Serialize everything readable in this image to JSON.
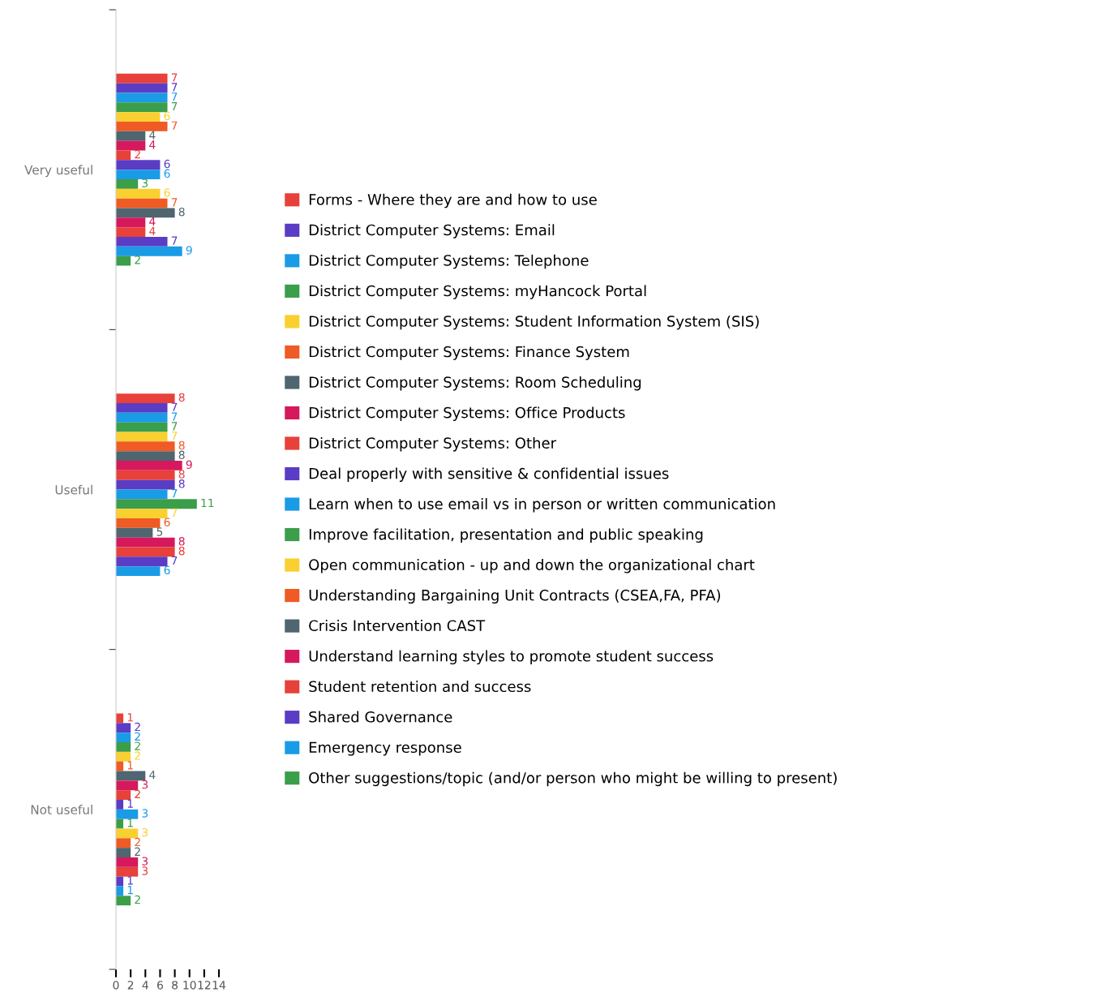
{
  "chart_data": {
    "type": "bar",
    "orientation": "horizontal",
    "categories": [
      "Very useful",
      "Useful",
      "Not useful"
    ],
    "xlim": [
      0,
      14
    ],
    "xticks": [
      0,
      2,
      4,
      6,
      8,
      10,
      12,
      14
    ],
    "data_labels": true,
    "legend": "right",
    "grid": false,
    "series": [
      {
        "name": "Forms - Where they are and how to use",
        "color": "#e8403a",
        "values": [
          7,
          8,
          1
        ]
      },
      {
        "name": "District Computer Systems: Email",
        "color": "#5b3cc4",
        "values": [
          7,
          7,
          2
        ]
      },
      {
        "name": "District Computer Systems: Telephone",
        "color": "#1a9be6",
        "values": [
          7,
          7,
          2
        ]
      },
      {
        "name": "District Computer Systems: myHancock Portal",
        "color": "#3a9e4a",
        "values": [
          7,
          7,
          2
        ]
      },
      {
        "name": "District Computer Systems: Student Information System (SIS)",
        "color": "#f9d030",
        "values": [
          6,
          7,
          2
        ]
      },
      {
        "name": "District Computer Systems: Finance System",
        "color": "#f05a24",
        "values": [
          7,
          8,
          1
        ]
      },
      {
        "name": "District Computer Systems: Room Scheduling",
        "color": "#4f6570",
        "values": [
          4,
          8,
          4
        ]
      },
      {
        "name": "District Computer Systems: Office Products",
        "color": "#d6185c",
        "values": [
          4,
          9,
          3
        ]
      },
      {
        "name": "District Computer Systems: Other",
        "color": "#e8403a",
        "values": [
          2,
          8,
          2
        ]
      },
      {
        "name": "Deal properly with sensitive & confidential issues",
        "color": "#5b3cc4",
        "values": [
          6,
          8,
          1
        ]
      },
      {
        "name": "Learn when to use email vs in person or written communication",
        "color": "#1a9be6",
        "values": [
          6,
          7,
          3
        ]
      },
      {
        "name": "Improve facilitation, presentation and public speaking",
        "color": "#3a9e4a",
        "values": [
          3,
          11,
          1
        ]
      },
      {
        "name": "Open communication - up and down the organizational chart",
        "color": "#f9d030",
        "values": [
          6,
          7,
          3
        ]
      },
      {
        "name": "Understanding Bargaining Unit Contracts (CSEA,FA, PFA)",
        "color": "#f05a24",
        "values": [
          7,
          6,
          2
        ]
      },
      {
        "name": "Crisis Intervention CAST",
        "color": "#4f6570",
        "values": [
          8,
          5,
          2
        ]
      },
      {
        "name": "Understand learning styles to promote student success",
        "color": "#d6185c",
        "values": [
          4,
          8,
          3
        ]
      },
      {
        "name": "Student retention and success",
        "color": "#e8403a",
        "values": [
          4,
          8,
          3
        ]
      },
      {
        "name": "Shared Governance",
        "color": "#5b3cc4",
        "values": [
          7,
          7,
          1
        ]
      },
      {
        "name": "Emergency response",
        "color": "#1a9be6",
        "values": [
          9,
          6,
          1
        ]
      },
      {
        "name": "Other suggestions/topic (and/or person who might be willing to present)",
        "color": "#3a9e4a",
        "values": [
          2,
          null,
          2
        ]
      }
    ]
  }
}
